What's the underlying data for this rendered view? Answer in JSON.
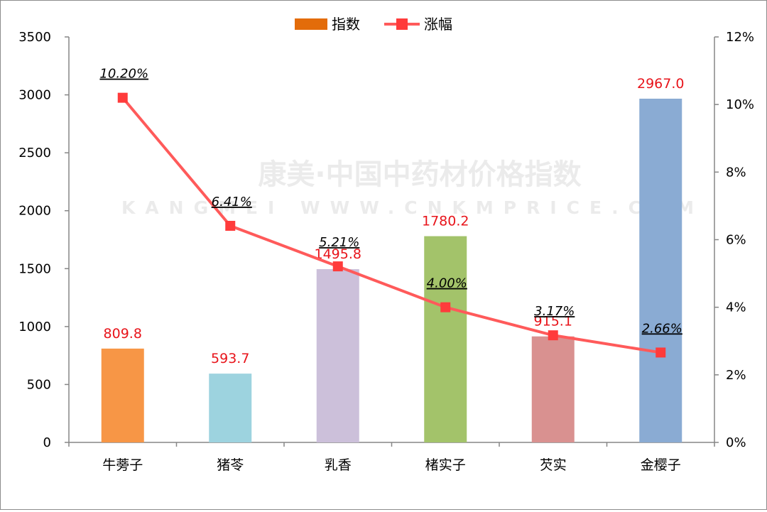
{
  "watermark": {
    "line1": "康美·中国中药材价格指数",
    "line2": "KANGMEI WWW.CNKMPRICE.COM"
  },
  "legend": {
    "bar_label": "指数",
    "line_label": "涨幅"
  },
  "chart_data": {
    "type": "bar",
    "categories": [
      "牛蒡子",
      "猪苓",
      "乳香",
      "楮实子",
      "芡实",
      "金樱子"
    ],
    "series": [
      {
        "name": "指数",
        "type": "bar",
        "axis": "left",
        "values": [
          809.8,
          593.7,
          1495.8,
          1780.2,
          915.1,
          2967.0
        ],
        "value_labels": [
          "809.8",
          "593.7",
          "1495.8",
          "1780.2",
          "915.1",
          "2967.0"
        ],
        "colors": [
          "#f79646",
          "#9dd3df",
          "#ccc0da",
          "#a3c36a",
          "#d99190",
          "#8aabd3"
        ]
      },
      {
        "name": "涨幅",
        "type": "line",
        "axis": "right",
        "values": [
          10.2,
          6.41,
          5.21,
          4.0,
          3.17,
          2.66
        ],
        "value_labels": [
          "10.20%",
          "6.41%",
          "5.21%",
          "4.00%",
          "3.17%",
          "2.66%"
        ],
        "color": "#ff5a5a"
      }
    ],
    "y_left": {
      "min": 0,
      "max": 3500,
      "ticks": [
        "0",
        "500",
        "1000",
        "1500",
        "2000",
        "2500",
        "3000",
        "3500"
      ]
    },
    "y_right": {
      "min": 0,
      "max": 12,
      "ticks": [
        "0%",
        "2%",
        "4%",
        "6%",
        "8%",
        "10%",
        "12%"
      ]
    },
    "legend_position": "top-center",
    "grid": false
  }
}
